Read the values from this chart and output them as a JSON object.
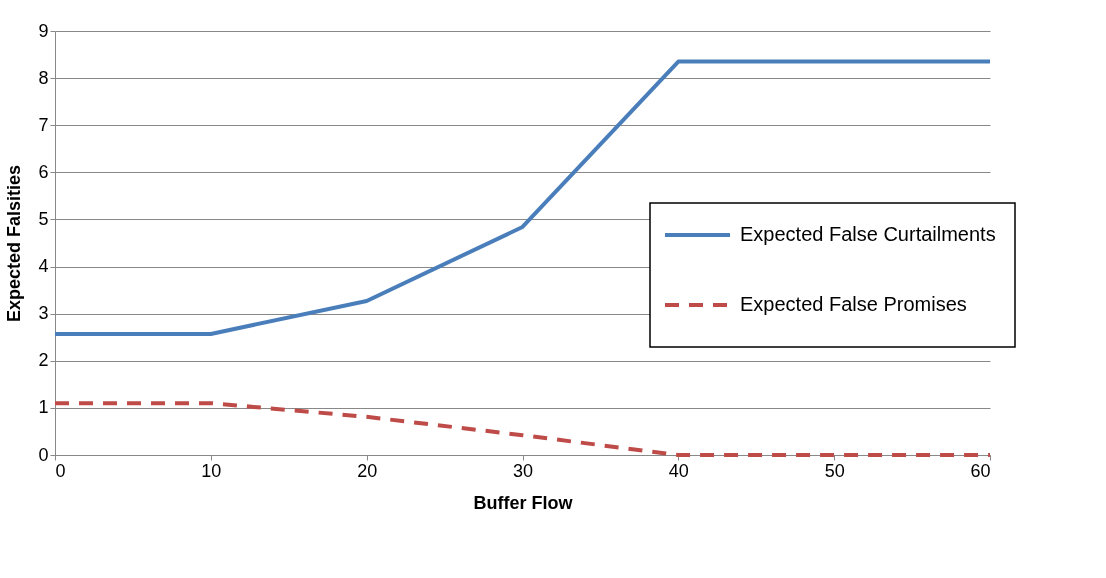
{
  "chart_data": {
    "type": "line",
    "xlabel": "Buffer Flow",
    "ylabel": "Expected Falsities",
    "x": [
      0,
      10,
      20,
      30,
      40,
      50,
      60
    ],
    "series": [
      {
        "name": "Expected False Curtailments",
        "color": "#4a7ebb",
        "line_style": "solid",
        "values": [
          2.57,
          2.57,
          3.27,
          4.84,
          8.35,
          8.35,
          8.35
        ]
      },
      {
        "name": "Expected False Promises",
        "color": "#be4b48",
        "line_style": "dashed",
        "values": [
          1.1,
          1.1,
          0.81,
          0.42,
          0,
          0,
          0
        ]
      }
    ],
    "xlim": [
      0,
      60
    ],
    "xticks": [
      0,
      10,
      20,
      30,
      40,
      50,
      60
    ],
    "ylim": [
      0,
      9
    ],
    "yticks": [
      0,
      1,
      2,
      3,
      4,
      5,
      6,
      7,
      8,
      9
    ],
    "grid": "y",
    "legend": "right",
    "marker": "none"
  }
}
